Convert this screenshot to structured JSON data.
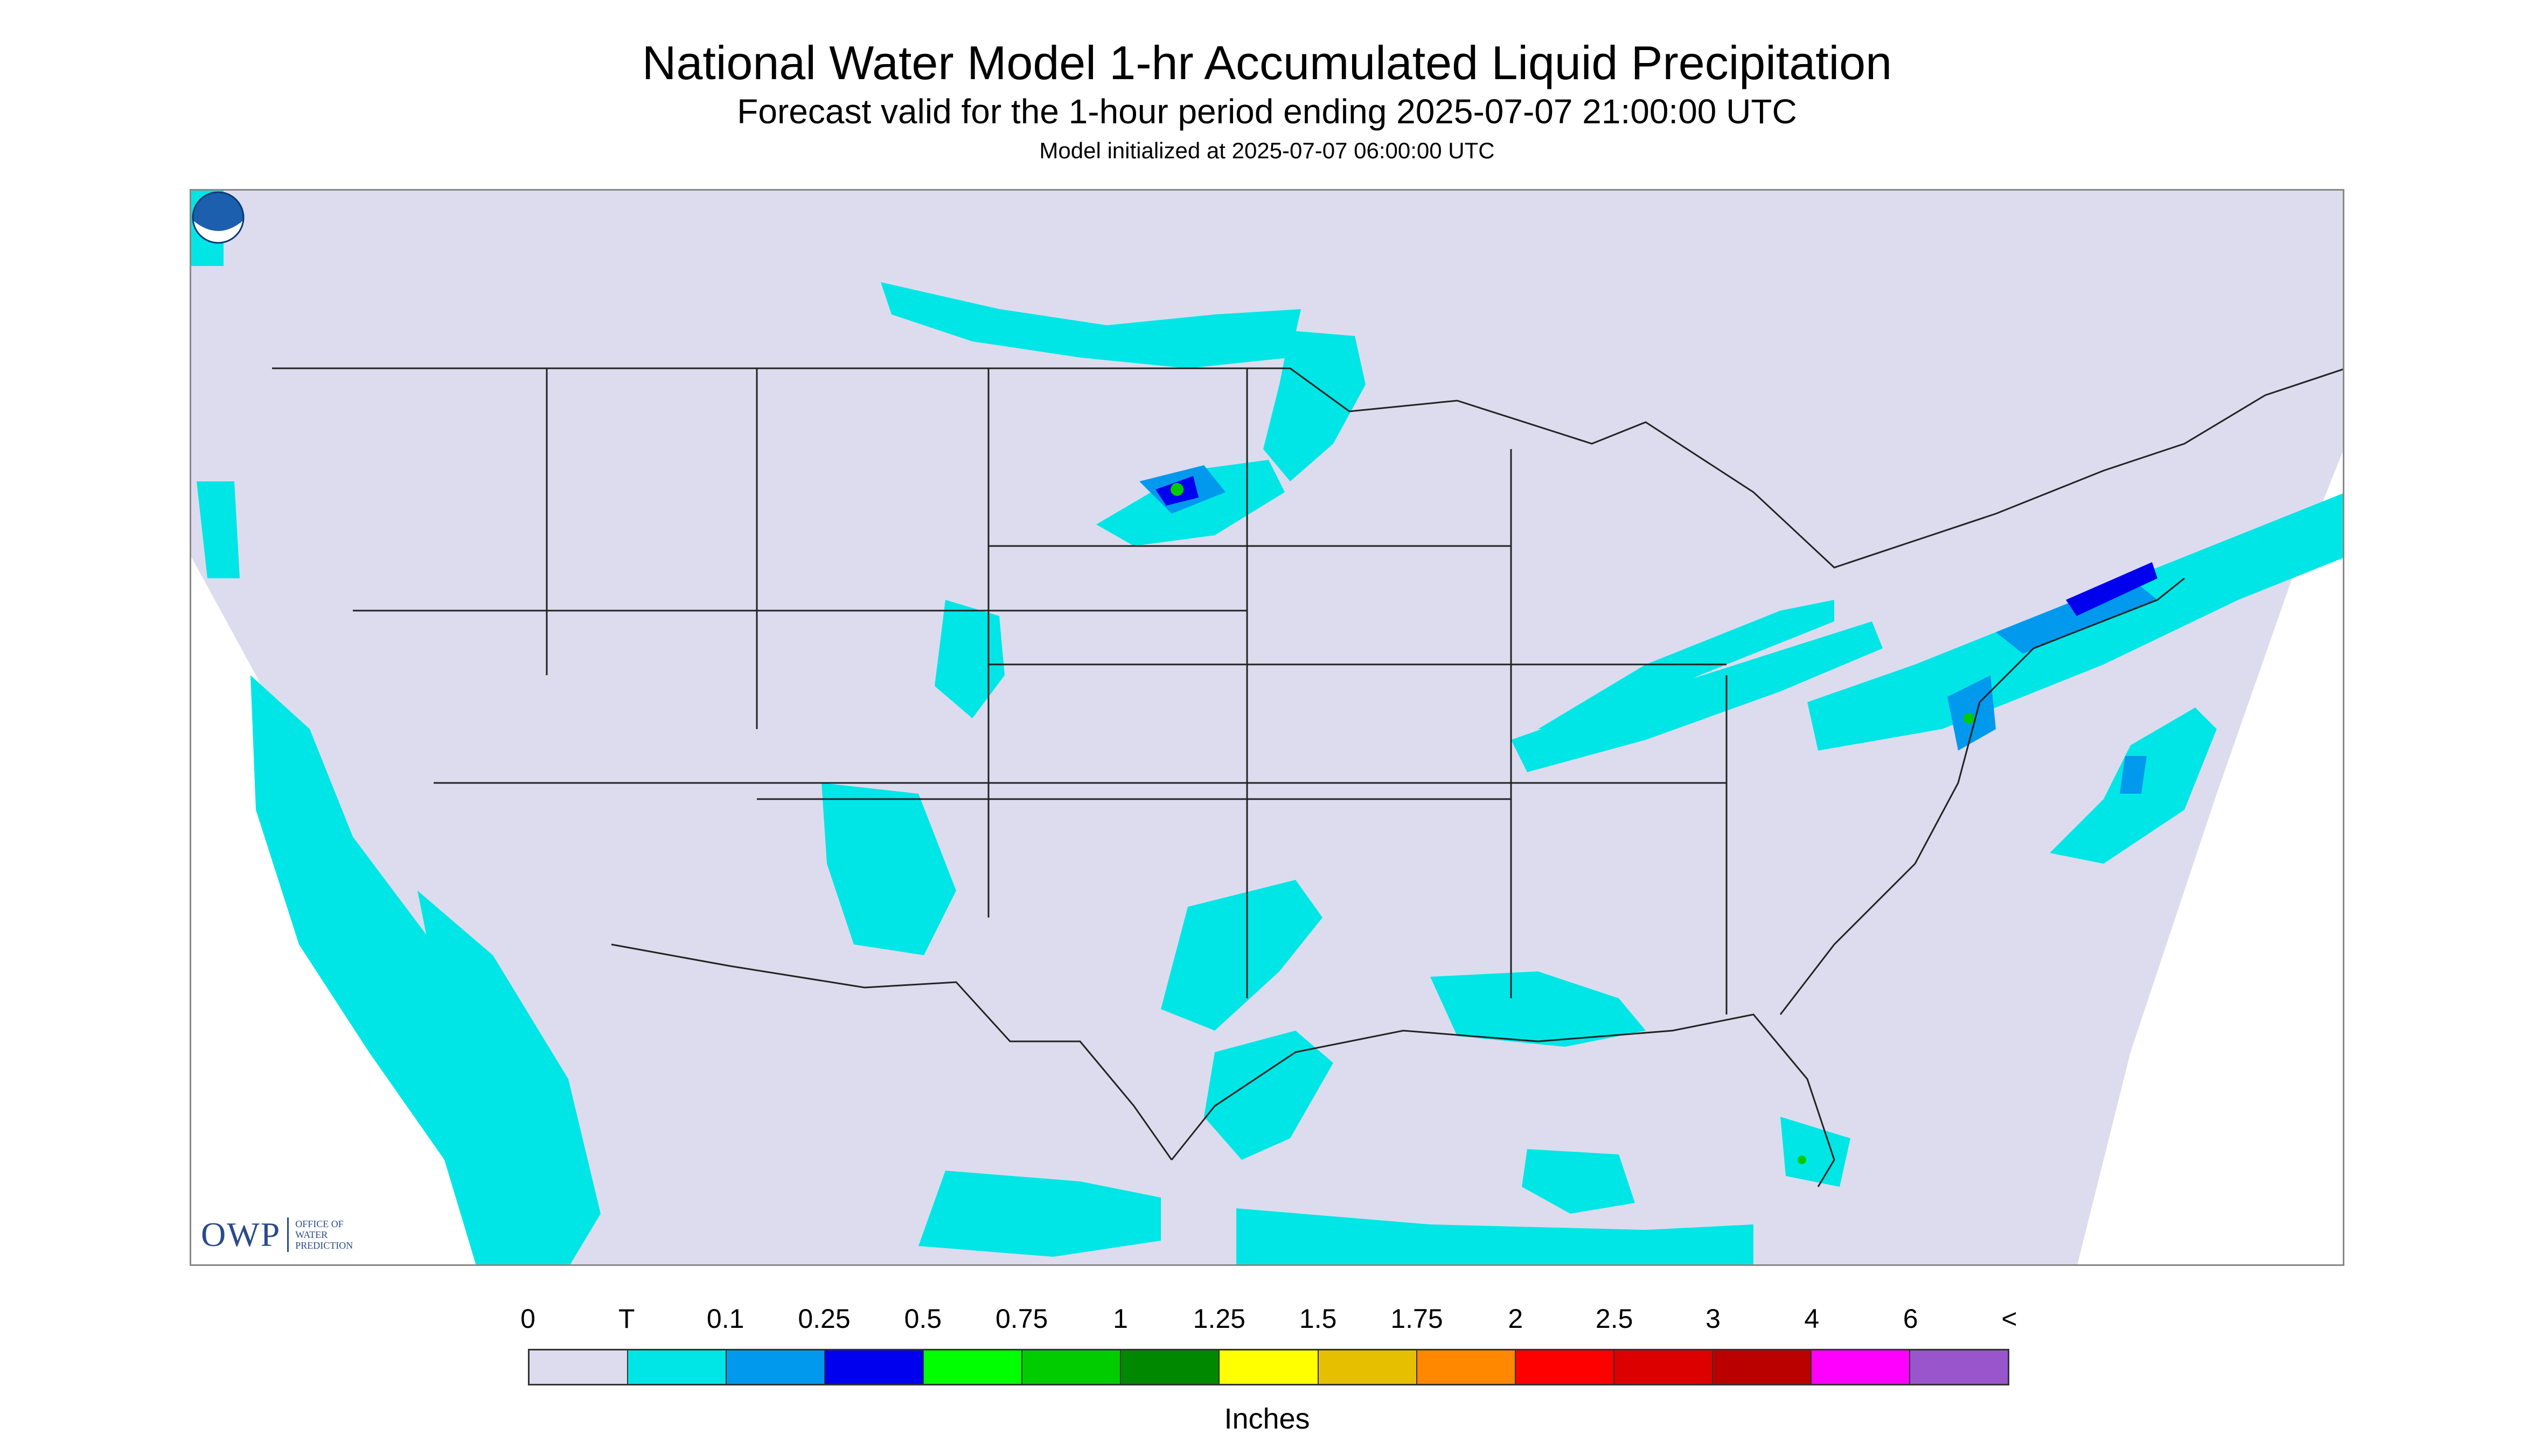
{
  "header": {
    "title": "National Water Model 1-hr Accumulated Liquid Precipitation",
    "subtitle": "Forecast valid for the 1-hour period ending 2025-07-07 21:00:00 UTC",
    "init": "Model initialized at 2025-07-07 06:00:00 UTC"
  },
  "logos": {
    "owp_letters": "OWP",
    "owp_name": "OFFICE OF WATER PREDICTION",
    "noaa": "NOAA"
  },
  "legend": {
    "labels": [
      "0",
      "T",
      "0.1",
      "0.25",
      "0.5",
      "0.75",
      "1",
      "1.25",
      "1.5",
      "1.75",
      "2",
      "2.5",
      "3",
      "4",
      "6",
      "<"
    ],
    "colors": [
      "#dcdcee",
      "#00e6e6",
      "#0099ee",
      "#0000ee",
      "#00ff00",
      "#00cc00",
      "#008800",
      "#ffff00",
      "#e6c000",
      "#ff8800",
      "#ff0000",
      "#dd0000",
      "#bb0000",
      "#ff00ff",
      "#9955cc"
    ],
    "units": "Inches"
  },
  "map": {
    "colors": {
      "background": "#dcdcee",
      "outside": "#ffffff",
      "border_lines": "#222222",
      "trace": "#00e6e6",
      "light": "#0099ee",
      "moderate": "#0000ee",
      "heavy": "#00cc00"
    }
  }
}
